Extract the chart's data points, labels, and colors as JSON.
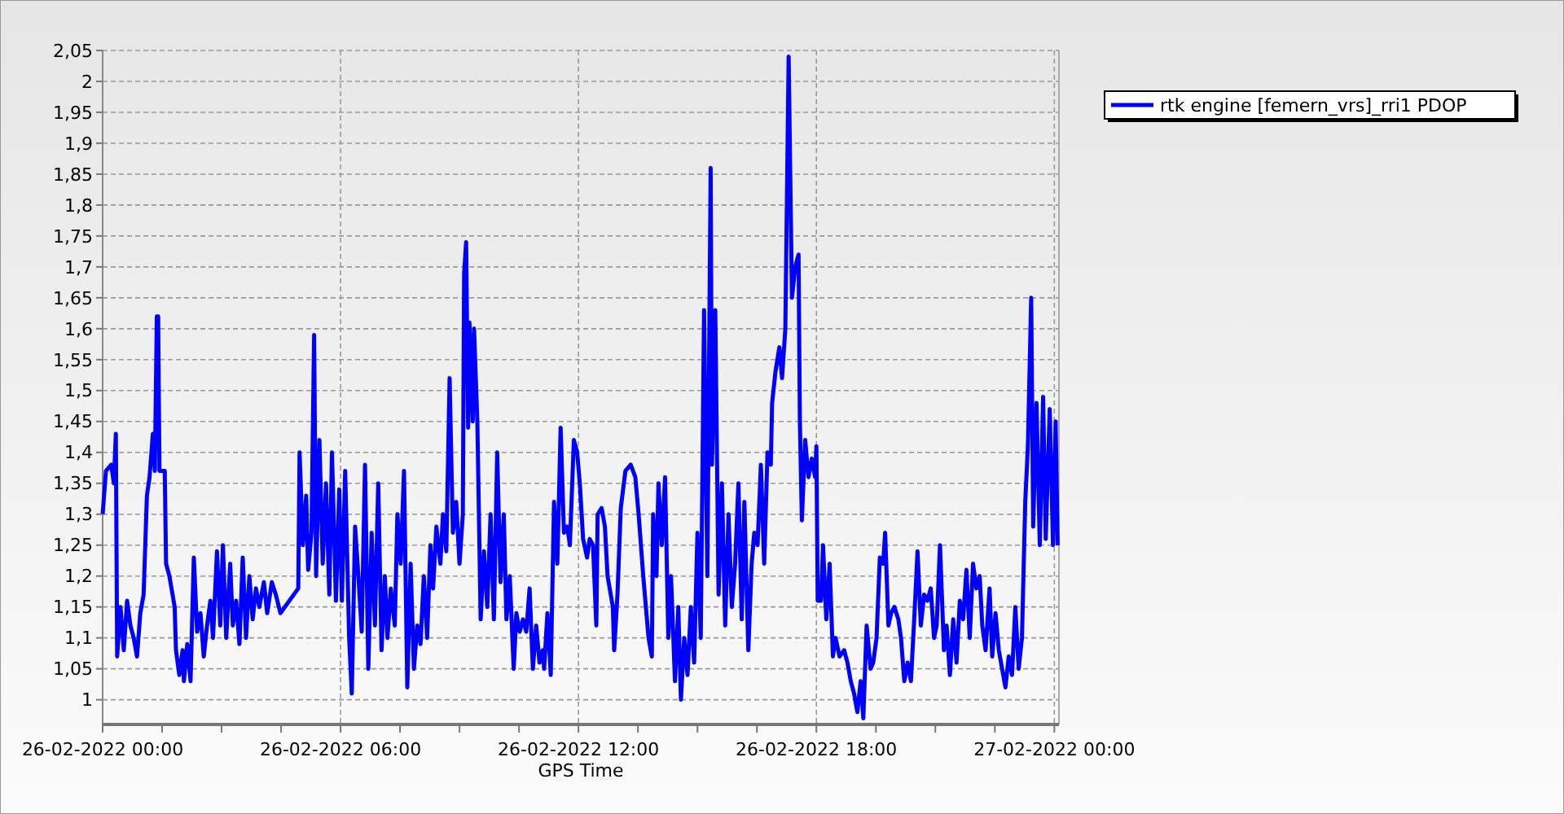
{
  "chart_data": {
    "type": "line",
    "xlabel": "GPS Time",
    "xlim": [
      "2022-02-26T00:00",
      "2022-02-27T00:07"
    ],
    "ylim": [
      0.96,
      2.05
    ],
    "xticks": [
      {
        "value": "2022-02-26T00:00",
        "label": "26-02-2022 00:00"
      },
      {
        "value": "2022-02-26T01:30",
        "label": null
      },
      {
        "value": "2022-02-26T03:00",
        "label": null
      },
      {
        "value": "2022-02-26T04:30",
        "label": null
      },
      {
        "value": "2022-02-26T06:00",
        "label": "26-02-2022 06:00"
      },
      {
        "value": "2022-02-26T07:30",
        "label": null
      },
      {
        "value": "2022-02-26T09:00",
        "label": null
      },
      {
        "value": "2022-02-26T10:30",
        "label": null
      },
      {
        "value": "2022-02-26T12:00",
        "label": "26-02-2022 12:00"
      },
      {
        "value": "2022-02-26T13:30",
        "label": null
      },
      {
        "value": "2022-02-26T15:00",
        "label": null
      },
      {
        "value": "2022-02-26T16:30",
        "label": null
      },
      {
        "value": "2022-02-26T18:00",
        "label": "26-02-2022 18:00"
      },
      {
        "value": "2022-02-26T19:30",
        "label": null
      },
      {
        "value": "2022-02-26T21:00",
        "label": null
      },
      {
        "value": "2022-02-26T22:30",
        "label": null
      },
      {
        "value": "2022-02-27T00:00",
        "label": "27-02-2022 00:00"
      }
    ],
    "yticks": [
      {
        "value": 1,
        "label": "1"
      },
      {
        "value": 1.05,
        "label": "1,05"
      },
      {
        "value": 1.1,
        "label": "1,1"
      },
      {
        "value": 1.15,
        "label": "1,15"
      },
      {
        "value": 1.2,
        "label": "1,2"
      },
      {
        "value": 1.25,
        "label": "1,25"
      },
      {
        "value": 1.3,
        "label": "1,3"
      },
      {
        "value": 1.35,
        "label": "1,35"
      },
      {
        "value": 1.4,
        "label": "1,4"
      },
      {
        "value": 1.45,
        "label": "1,45"
      },
      {
        "value": 1.5,
        "label": "1,5"
      },
      {
        "value": 1.55,
        "label": "1,55"
      },
      {
        "value": 1.6,
        "label": "1,6"
      },
      {
        "value": 1.65,
        "label": "1,65"
      },
      {
        "value": 1.7,
        "label": "1,7"
      },
      {
        "value": 1.75,
        "label": "1,75"
      },
      {
        "value": 1.8,
        "label": "1,8"
      },
      {
        "value": 1.85,
        "label": "1,85"
      },
      {
        "value": 1.9,
        "label": "1,9"
      },
      {
        "value": 1.95,
        "label": "1,95"
      },
      {
        "value": 2,
        "label": "2"
      },
      {
        "value": 2.05,
        "label": "2,05"
      }
    ],
    "grid": true,
    "legend": "top right",
    "marker": "none",
    "line_style": "solid",
    "series": [
      {
        "name": "rtk engine [femern_vrs]_rri1 PDOP",
        "color": "#0000ff",
        "x": [
          "2022-02-26T00:00",
          "2022-02-26T00:05",
          "2022-02-26T00:13",
          "2022-02-26T00:17",
          "2022-02-26T00:20",
          "2022-02-26T00:22",
          "2022-02-26T00:27",
          "2022-02-26T00:32",
          "2022-02-26T00:37",
          "2022-02-26T00:42",
          "2022-02-26T00:47",
          "2022-02-26T00:52",
          "2022-02-26T00:57",
          "2022-02-26T01:02",
          "2022-02-26T01:07",
          "2022-02-26T01:11",
          "2022-02-26T01:16",
          "2022-02-26T01:19",
          "2022-02-26T01:22",
          "2022-02-26T01:24",
          "2022-02-26T01:26",
          "2022-02-26T01:34",
          "2022-02-26T01:36",
          "2022-02-26T01:41",
          "2022-02-26T01:49",
          "2022-02-26T01:51",
          "2022-02-26T01:56",
          "2022-02-26T02:01",
          "2022-02-26T02:03",
          "2022-02-26T02:08",
          "2022-02-26T02:13",
          "2022-02-26T02:18",
          "2022-02-26T02:23",
          "2022-02-26T02:28",
          "2022-02-26T02:33",
          "2022-02-26T02:38",
          "2022-02-26T02:43",
          "2022-02-26T02:47",
          "2022-02-26T02:53",
          "2022-02-26T02:58",
          "2022-02-26T03:02",
          "2022-02-26T03:07",
          "2022-02-26T03:13",
          "2022-02-26T03:17",
          "2022-02-26T03:22",
          "2022-02-26T03:27",
          "2022-02-26T03:32",
          "2022-02-26T03:37",
          "2022-02-26T03:42",
          "2022-02-26T03:47",
          "2022-02-26T03:52",
          "2022-02-26T03:57",
          "2022-02-26T04:04",
          "2022-02-26T04:09",
          "2022-02-26T04:16",
          "2022-02-26T04:22",
          "2022-02-26T04:29",
          "2022-02-26T04:56",
          "2022-02-26T04:58",
          "2022-02-26T05:03",
          "2022-02-26T05:08",
          "2022-02-26T05:11",
          "2022-02-26T05:16",
          "2022-02-26T05:20",
          "2022-02-26T05:23",
          "2022-02-26T05:28",
          "2022-02-26T05:33",
          "2022-02-26T05:38",
          "2022-02-26T05:43",
          "2022-02-26T05:47",
          "2022-02-26T05:53",
          "2022-02-26T05:58",
          "2022-02-26T06:02",
          "2022-02-26T06:07",
          "2022-02-26T06:13",
          "2022-02-26T06:17",
          "2022-02-26T06:22",
          "2022-02-26T06:27",
          "2022-02-26T06:32",
          "2022-02-26T06:37",
          "2022-02-26T06:42",
          "2022-02-26T06:47",
          "2022-02-26T06:52",
          "2022-02-26T06:57",
          "2022-02-26T07:02",
          "2022-02-26T07:07",
          "2022-02-26T07:11",
          "2022-02-26T07:16",
          "2022-02-26T07:22",
          "2022-02-26T07:26",
          "2022-02-26T07:31",
          "2022-02-26T07:36",
          "2022-02-26T07:41",
          "2022-02-26T07:46",
          "2022-02-26T07:51",
          "2022-02-26T07:56",
          "2022-02-26T08:01",
          "2022-02-26T08:06",
          "2022-02-26T08:11",
          "2022-02-26T08:16",
          "2022-02-26T08:20",
          "2022-02-26T08:25",
          "2022-02-26T08:31",
          "2022-02-26T08:35",
          "2022-02-26T08:40",
          "2022-02-26T08:45",
          "2022-02-26T08:50",
          "2022-02-26T08:55",
          "2022-02-26T09:00",
          "2022-02-26T09:05",
          "2022-02-26T09:07",
          "2022-02-26T09:10",
          "2022-02-26T09:13",
          "2022-02-26T09:15",
          "2022-02-26T09:20",
          "2022-02-26T09:22",
          "2022-02-26T09:27",
          "2022-02-26T09:32",
          "2022-02-26T09:37",
          "2022-02-26T09:42",
          "2022-02-26T09:47",
          "2022-02-26T09:52",
          "2022-02-26T09:57",
          "2022-02-26T10:02",
          "2022-02-26T10:07",
          "2022-02-26T10:11",
          "2022-02-26T10:16",
          "2022-02-26T10:22",
          "2022-02-26T10:26",
          "2022-02-26T10:31",
          "2022-02-26T10:36",
          "2022-02-26T10:41",
          "2022-02-26T10:46",
          "2022-02-26T10:51",
          "2022-02-26T10:56",
          "2022-02-26T11:01",
          "2022-02-26T11:06",
          "2022-02-26T11:08",
          "2022-02-26T11:13",
          "2022-02-26T11:18",
          "2022-02-26T11:23",
          "2022-02-26T11:28",
          "2022-02-26T11:33",
          "2022-02-26T11:38",
          "2022-02-26T11:43",
          "2022-02-26T11:47",
          "2022-02-26T11:53",
          "2022-02-26T11:58",
          "2022-02-26T12:02",
          "2022-02-26T12:07",
          "2022-02-26T12:13",
          "2022-02-26T12:17",
          "2022-02-26T12:22",
          "2022-02-26T12:27",
          "2022-02-26T12:29",
          "2022-02-26T12:35",
          "2022-02-26T12:40",
          "2022-02-26T12:44",
          "2022-02-26T12:52",
          "2022-02-26T12:54",
          "2022-02-26T12:59",
          "2022-02-26T13:04",
          "2022-02-26T13:11",
          "2022-02-26T13:19",
          "2022-02-26T13:26",
          "2022-02-26T13:31",
          "2022-02-26T13:38",
          "2022-02-26T13:46",
          "2022-02-26T13:51",
          "2022-02-26T13:53",
          "2022-02-26T13:58",
          "2022-02-26T14:01",
          "2022-02-26T14:06",
          "2022-02-26T14:11",
          "2022-02-26T14:16",
          "2022-02-26T14:20",
          "2022-02-26T14:26",
          "2022-02-26T14:31",
          "2022-02-26T14:35",
          "2022-02-26T14:40",
          "2022-02-26T14:45",
          "2022-02-26T14:50",
          "2022-02-26T14:55",
          "2022-02-26T15:00",
          "2022-02-26T15:05",
          "2022-02-26T15:10",
          "2022-02-26T15:15",
          "2022-02-26T15:20",
          "2022-02-26T15:22",
          "2022-02-26T15:27",
          "2022-02-26T15:32",
          "2022-02-26T15:37",
          "2022-02-26T15:42",
          "2022-02-26T15:47",
          "2022-02-26T15:52",
          "2022-02-26T15:57",
          "2022-02-26T16:02",
          "2022-02-26T16:07",
          "2022-02-26T16:11",
          "2022-02-26T16:17",
          "2022-02-26T16:22",
          "2022-02-26T16:26",
          "2022-02-26T16:31",
          "2022-02-26T16:36",
          "2022-02-26T16:41",
          "2022-02-26T16:46",
          "2022-02-26T16:51",
          "2022-02-26T16:53",
          "2022-02-26T16:58",
          "2022-02-26T17:04",
          "2022-02-26T17:08",
          "2022-02-26T17:13",
          "2022-02-26T17:18",
          "2022-02-26T17:23",
          "2022-02-26T17:28",
          "2022-02-26T17:33",
          "2022-02-26T17:35",
          "2022-02-26T17:38",
          "2022-02-26T17:43",
          "2022-02-26T17:48",
          "2022-02-26T17:53",
          "2022-02-26T17:58",
          "2022-02-26T18:00",
          "2022-02-26T18:02",
          "2022-02-26T18:07",
          "2022-02-26T18:10",
          "2022-02-26T18:15",
          "2022-02-26T18:20",
          "2022-02-26T18:25",
          "2022-02-26T18:29",
          "2022-02-26T18:35",
          "2022-02-26T18:42",
          "2022-02-26T18:47",
          "2022-02-26T18:52",
          "2022-02-26T18:57",
          "2022-02-26T19:02",
          "2022-02-26T19:07",
          "2022-02-26T19:11",
          "2022-02-26T19:16",
          "2022-02-26T19:22",
          "2022-02-26T19:26",
          "2022-02-26T19:31",
          "2022-02-26T19:36",
          "2022-02-26T19:41",
          "2022-02-26T19:44",
          "2022-02-26T19:49",
          "2022-02-26T19:53",
          "2022-02-26T19:58",
          "2022-02-26T20:04",
          "2022-02-26T20:08",
          "2022-02-26T20:13",
          "2022-02-26T20:18",
          "2022-02-26T20:23",
          "2022-02-26T20:28",
          "2022-02-26T20:33",
          "2022-02-26T20:38",
          "2022-02-26T20:43",
          "2022-02-26T20:48",
          "2022-02-26T20:53",
          "2022-02-26T20:58",
          "2022-02-26T21:02",
          "2022-02-26T21:07",
          "2022-02-26T21:13",
          "2022-02-26T21:17",
          "2022-02-26T21:22",
          "2022-02-26T21:27",
          "2022-02-26T21:32",
          "2022-02-26T21:37",
          "2022-02-26T21:42",
          "2022-02-26T21:47",
          "2022-02-26T21:52",
          "2022-02-26T21:57",
          "2022-02-26T22:02",
          "2022-02-26T22:07",
          "2022-02-26T22:11",
          "2022-02-26T22:16",
          "2022-02-26T22:22",
          "2022-02-26T22:26",
          "2022-02-26T22:31",
          "2022-02-26T22:36",
          "2022-02-26T22:41",
          "2022-02-26T22:46",
          "2022-02-26T22:51",
          "2022-02-26T22:56",
          "2022-02-26T23:01",
          "2022-02-26T23:06",
          "2022-02-26T23:11",
          "2022-02-26T23:16",
          "2022-02-26T23:20",
          "2022-02-26T23:25",
          "2022-02-26T23:28",
          "2022-02-26T23:33",
          "2022-02-26T23:38",
          "2022-02-26T23:43",
          "2022-02-26T23:47",
          "2022-02-26T23:53",
          "2022-02-26T23:58",
          "2022-02-27T00:02",
          "2022-02-27T00:05"
        ],
        "values": [
          1.3,
          1.37,
          1.38,
          1.35,
          1.43,
          1.07,
          1.15,
          1.08,
          1.16,
          1.12,
          1.1,
          1.07,
          1.14,
          1.17,
          1.33,
          1.36,
          1.43,
          1.37,
          1.62,
          1.62,
          1.37,
          1.37,
          1.22,
          1.2,
          1.15,
          1.08,
          1.04,
          1.08,
          1.03,
          1.09,
          1.03,
          1.23,
          1.11,
          1.14,
          1.07,
          1.12,
          1.16,
          1.1,
          1.24,
          1.12,
          1.25,
          1.1,
          1.22,
          1.12,
          1.16,
          1.09,
          1.23,
          1.1,
          1.2,
          1.13,
          1.18,
          1.15,
          1.19,
          1.14,
          1.19,
          1.17,
          1.14,
          1.18,
          1.4,
          1.25,
          1.33,
          1.21,
          1.27,
          1.59,
          1.2,
          1.42,
          1.22,
          1.35,
          1.17,
          1.4,
          1.16,
          1.34,
          1.16,
          1.37,
          1.1,
          1.01,
          1.28,
          1.2,
          1.11,
          1.38,
          1.05,
          1.27,
          1.12,
          1.35,
          1.08,
          1.2,
          1.1,
          1.18,
          1.12,
          1.3,
          1.22,
          1.37,
          1.02,
          1.22,
          1.05,
          1.12,
          1.09,
          1.2,
          1.1,
          1.25,
          1.18,
          1.28,
          1.22,
          1.3,
          1.24,
          1.52,
          1.27,
          1.32,
          1.22,
          1.3,
          1.69,
          1.74,
          1.44,
          1.61,
          1.45,
          1.6,
          1.45,
          1.13,
          1.24,
          1.15,
          1.3,
          1.13,
          1.4,
          1.19,
          1.3,
          1.13,
          1.2,
          1.05,
          1.14,
          1.11,
          1.13,
          1.11,
          1.18,
          1.05,
          1.12,
          1.06,
          1.08,
          1.05,
          1.14,
          1.04,
          1.32,
          1.22,
          1.44,
          1.27,
          1.28,
          1.25,
          1.42,
          1.4,
          1.35,
          1.26,
          1.23,
          1.26,
          1.25,
          1.12,
          1.3,
          1.31,
          1.28,
          1.2,
          1.15,
          1.08,
          1.17,
          1.31,
          1.37,
          1.38,
          1.36,
          1.3,
          1.2,
          1.1,
          1.07,
          1.3,
          1.2,
          1.35,
          1.25,
          1.36,
          1.1,
          1.2,
          1.03,
          1.15,
          1.0,
          1.1,
          1.04,
          1.15,
          1.06,
          1.27,
          1.1,
          1.63,
          1.2,
          1.86,
          1.38,
          1.63,
          1.17,
          1.35,
          1.12,
          1.3,
          1.15,
          1.22,
          1.35,
          1.13,
          1.32,
          1.08,
          1.22,
          1.27,
          1.25,
          1.38,
          1.22,
          1.4,
          1.38,
          1.48,
          1.53,
          1.57,
          1.52,
          1.6,
          2.04,
          1.65,
          1.7,
          1.72,
          1.45,
          1.29,
          1.42,
          1.36,
          1.39,
          1.36,
          1.41,
          1.16,
          1.16,
          1.25,
          1.13,
          1.22,
          1.07,
          1.1,
          1.07,
          1.08,
          1.06,
          1.03,
          1.01,
          0.98,
          1.03,
          0.97,
          1.12,
          1.05,
          1.06,
          1.1,
          1.23,
          1.22,
          1.27,
          1.12,
          1.14,
          1.15,
          1.13,
          1.1,
          1.03,
          1.06,
          1.03,
          1.13,
          1.24,
          1.12,
          1.17,
          1.16,
          1.18,
          1.1,
          1.12,
          1.25,
          1.08,
          1.12,
          1.04,
          1.13,
          1.06,
          1.16,
          1.13,
          1.21,
          1.1,
          1.22,
          1.18,
          1.2,
          1.12,
          1.08,
          1.18,
          1.07,
          1.14,
          1.08,
          1.05,
          1.02,
          1.07,
          1.04,
          1.15,
          1.05,
          1.1,
          1.32,
          1.41,
          1.65,
          1.28,
          1.48,
          1.25,
          1.49,
          1.26,
          1.47,
          1.25,
          1.45,
          1.25
        ]
      }
    ]
  }
}
